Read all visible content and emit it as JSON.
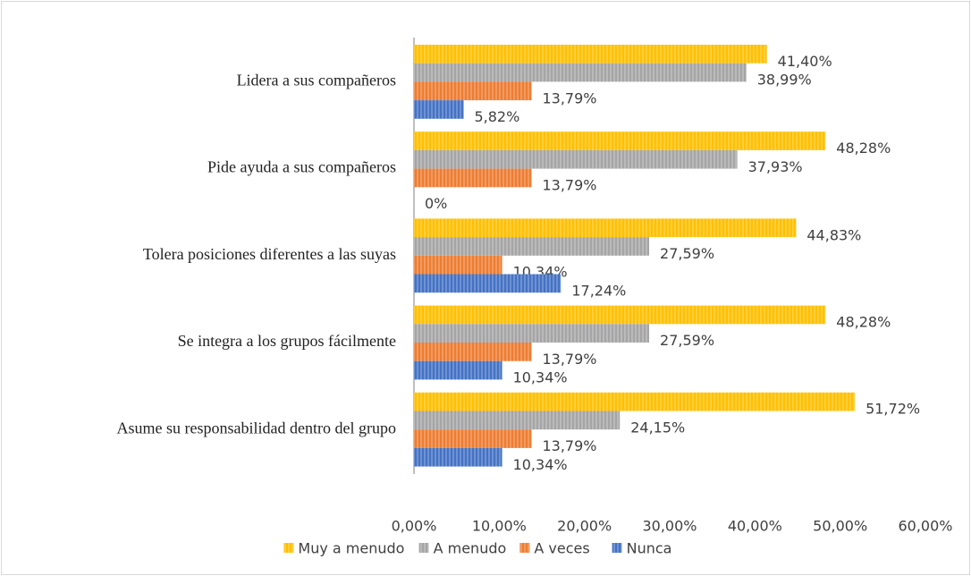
{
  "chart_data": {
    "type": "bar",
    "orientation": "horizontal",
    "categories": [
      "Lidera a sus compañeros",
      "Pide ayuda a sus compañeros",
      "Tolera posiciones diferentes a las suyas",
      "Se integra a los grupos fácilmente",
      "Asume su responsabilidad dentro del grupo"
    ],
    "series": [
      {
        "name": "Muy a menudo",
        "color": "#ffc000",
        "values": [
          41.4,
          48.28,
          44.83,
          48.28,
          51.72
        ],
        "value_labels": [
          "41,40%",
          "48,28%",
          "44,83%",
          "48,28%",
          "51,72%"
        ]
      },
      {
        "name": "A menudo",
        "color": "#a5a5a5",
        "values": [
          38.99,
          37.93,
          27.59,
          27.59,
          24.15
        ],
        "value_labels": [
          "38,99%",
          "37,93%",
          "27,59%",
          "27,59%",
          "24,15%"
        ]
      },
      {
        "name": "A veces",
        "color": "#ed7d31",
        "values": [
          13.79,
          13.79,
          10.34,
          13.79,
          13.79
        ],
        "value_labels": [
          "13,79%",
          "13,79%",
          "10,34%",
          "13,79%",
          "13,79%"
        ]
      },
      {
        "name": "Nunca",
        "color": "#4472c4",
        "values": [
          5.82,
          0,
          17.24,
          10.34,
          10.34
        ],
        "value_labels": [
          "5,82%",
          "0%",
          "17,24%",
          "10,34%",
          "10,34%"
        ]
      }
    ],
    "xlim": [
      0,
      60
    ],
    "xticks": [
      {
        "value": 0,
        "label": "0,00%"
      },
      {
        "value": 10,
        "label": "10,00%"
      },
      {
        "value": 20,
        "label": "20,00%"
      },
      {
        "value": 30,
        "label": "30,00%"
      },
      {
        "value": 40,
        "label": "40,00%"
      },
      {
        "value": 50,
        "label": "50,00%"
      },
      {
        "value": 60,
        "label": "60,00%"
      }
    ],
    "legend": "bottom"
  }
}
